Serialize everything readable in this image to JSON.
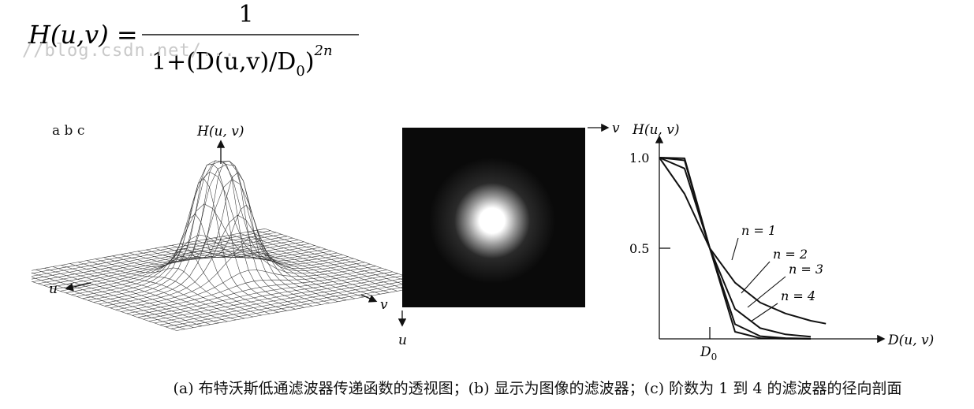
{
  "formula": {
    "lhs": "H(u,v) =",
    "numerator": "1",
    "denominator": "1+(D(u,v)/D",
    "d0_sub": "0",
    "exponent": "2n"
  },
  "watermark": "//blog.csdn.net/...",
  "panel_labels": "a  b  c",
  "fig_a": {
    "z_label": "H(u, v)",
    "u_label": "u",
    "v_label": "v"
  },
  "fig_b": {
    "v_label": "v",
    "u_label": "u"
  },
  "chart_data": {
    "type": "line",
    "title": "",
    "ylabel": "H(u, v)",
    "xlabel": "D(u, v)",
    "ytick_labels": [
      "1.0",
      "0.5"
    ],
    "xtick_label": "D",
    "xtick_sub": "0",
    "ylim": [
      0,
      1
    ],
    "series": [
      {
        "name": "n = 1",
        "x": [
          0,
          0.5,
          1,
          1.5,
          2,
          2.5,
          3,
          3.3
        ],
        "values": [
          1,
          0.8,
          0.5,
          0.31,
          0.2,
          0.14,
          0.1,
          0.084
        ]
      },
      {
        "name": "n = 2",
        "x": [
          0,
          0.5,
          1,
          1.5,
          2,
          2.5,
          3
        ],
        "values": [
          1,
          0.94,
          0.5,
          0.165,
          0.059,
          0.025,
          0.012
        ]
      },
      {
        "name": "n = 3",
        "x": [
          0,
          0.5,
          1,
          1.5,
          2,
          2.5,
          3
        ],
        "values": [
          1,
          0.985,
          0.5,
          0.081,
          0.015,
          0.004,
          0.001
        ]
      },
      {
        "name": "n = 4",
        "x": [
          0,
          0.5,
          1,
          1.5,
          2,
          2.5,
          3
        ],
        "values": [
          1,
          0.996,
          0.5,
          0.039,
          0.004,
          0.001,
          0.0
        ]
      }
    ]
  },
  "caption": "(a) 布特沃斯低通滤波器传递函数的透视图；(b) 显示为图像的滤波器；(c) 阶数为 1 到 4 的滤波器的径向剖面"
}
